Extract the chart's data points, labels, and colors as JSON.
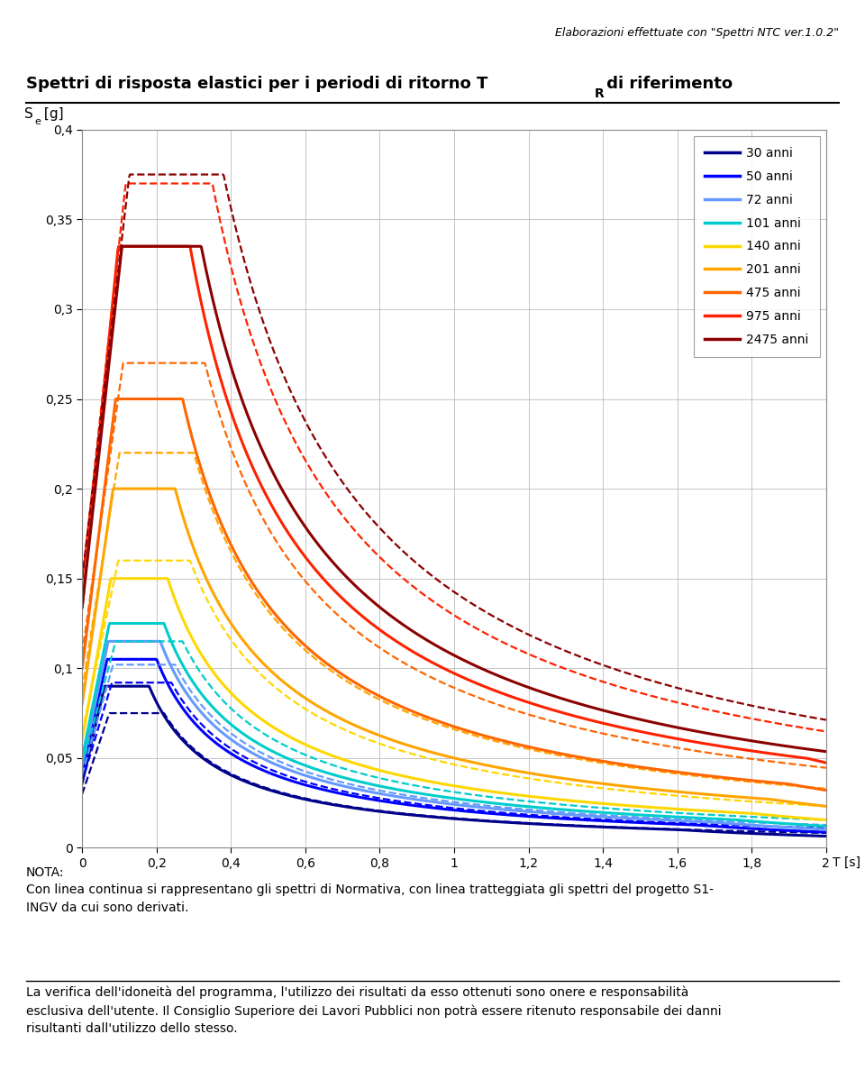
{
  "header_text": "Elaborazioni effettuate con \"Spettri NTC ver.1.0.2\"",
  "ylabel_s": "S",
  "ylabel_e": "e",
  "ylabel_unit": "[g]",
  "xlabel": "T [s]",
  "xlim": [
    0,
    2
  ],
  "ylim": [
    0,
    0.4
  ],
  "yticks": [
    0,
    0.05,
    0.1,
    0.15,
    0.2,
    0.25,
    0.3,
    0.35,
    0.4
  ],
  "xticks": [
    0,
    0.2,
    0.4,
    0.6,
    0.8,
    1.0,
    1.2,
    1.4,
    1.6,
    1.8,
    2.0
  ],
  "note_text": "NOTA:\nCon linea continua si rappresentano gli spettri di Normativa, con linea tratteggiata gli spettri del progetto S1-\nINGV da cui sono derivati.",
  "disclaimer_text": "La verifica dell'idoneità del programma, l'utilizzo dei risultati da esso ottenuti sono onere e responsabilità\nesclusiva dell'utente. Il Consiglio Superiore dei Lavori Pubblici non potrà essere ritenuto responsabile dei danni\nrisultanti dall'utilizzo dello stesso.",
  "series": [
    {
      "label": "30 anni",
      "color": "#00008B",
      "solid_peak": 0.09,
      "solid_TB": 0.06,
      "solid_Tc": 0.18,
      "solid_Td": 1.6,
      "dashed_peak": 0.075,
      "dashed_TB": 0.073,
      "dashed_Tc": 0.22,
      "dashed_Td": 2.0
    },
    {
      "label": "50 anni",
      "color": "#0000FF",
      "solid_peak": 0.105,
      "solid_TB": 0.067,
      "solid_Tc": 0.2,
      "solid_Td": 1.65,
      "dashed_peak": 0.092,
      "dashed_TB": 0.08,
      "dashed_Tc": 0.24,
      "dashed_Td": 2.0
    },
    {
      "label": "72 anni",
      "color": "#6699FF",
      "solid_peak": 0.115,
      "solid_TB": 0.07,
      "solid_Tc": 0.21,
      "solid_Td": 1.7,
      "dashed_peak": 0.102,
      "dashed_TB": 0.083,
      "dashed_Tc": 0.25,
      "dashed_Td": 2.0
    },
    {
      "label": "101 anni",
      "color": "#00CCCC",
      "solid_peak": 0.125,
      "solid_TB": 0.073,
      "solid_Tc": 0.22,
      "solid_Td": 1.75,
      "dashed_peak": 0.115,
      "dashed_TB": 0.09,
      "dashed_Tc": 0.27,
      "dashed_Td": 2.0
    },
    {
      "label": "140 anni",
      "color": "#FFD700",
      "solid_peak": 0.15,
      "solid_TB": 0.077,
      "solid_Tc": 0.23,
      "solid_Td": 1.8,
      "dashed_peak": 0.16,
      "dashed_TB": 0.097,
      "dashed_Tc": 0.29,
      "dashed_Td": 2.0
    },
    {
      "label": "201 anni",
      "color": "#FFA500",
      "solid_peak": 0.2,
      "solid_TB": 0.083,
      "solid_Tc": 0.25,
      "solid_Td": 1.85,
      "dashed_peak": 0.22,
      "dashed_TB": 0.1,
      "dashed_Tc": 0.3,
      "dashed_Td": 2.0
    },
    {
      "label": "475 anni",
      "color": "#FF6600",
      "solid_peak": 0.25,
      "solid_TB": 0.09,
      "solid_Tc": 0.27,
      "solid_Td": 1.9,
      "dashed_peak": 0.27,
      "dashed_TB": 0.11,
      "dashed_Tc": 0.33,
      "dashed_Td": 2.0
    },
    {
      "label": "975 anni",
      "color": "#FF2200",
      "solid_peak": 0.335,
      "solid_TB": 0.097,
      "solid_Tc": 0.29,
      "solid_Td": 1.95,
      "dashed_peak": 0.37,
      "dashed_TB": 0.117,
      "dashed_Tc": 0.35,
      "dashed_Td": 2.0
    },
    {
      "label": "2475 anni",
      "color": "#8B0000",
      "solid_peak": 0.335,
      "solid_TB": 0.107,
      "solid_Tc": 0.32,
      "solid_Td": 2.0,
      "dashed_peak": 0.375,
      "dashed_TB": 0.127,
      "dashed_Tc": 0.38,
      "dashed_Td": 2.0
    }
  ]
}
